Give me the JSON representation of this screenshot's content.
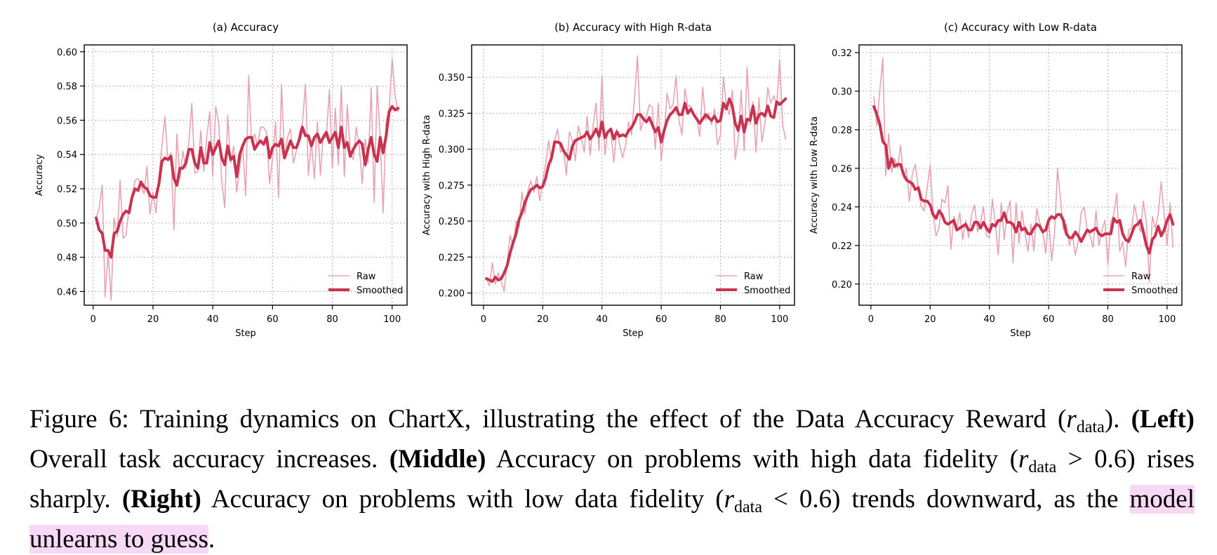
{
  "colors": {
    "raw": "#e8a3b3",
    "smoothed": "#c8334f",
    "grid": "#b0b0b0",
    "highlight": "#f7d8f5"
  },
  "chart_data": [
    {
      "type": "line",
      "title": "(a) Accuracy",
      "xlabel": "Step",
      "ylabel": "Accuracy",
      "xlim": [
        -3,
        105
      ],
      "ylim": [
        0.452,
        0.604
      ],
      "xticks": [
        0,
        20,
        40,
        60,
        80,
        100
      ],
      "yticks": [
        0.46,
        0.48,
        0.5,
        0.52,
        0.54,
        0.56,
        0.58,
        0.6
      ],
      "ytick_labels": [
        "0.46",
        "0.48",
        "0.50",
        "0.52",
        "0.54",
        "0.56",
        "0.58",
        "0.60"
      ],
      "grid": true,
      "legend_position": "lower-right",
      "series": [
        {
          "name": "Raw",
          "values": [
            0.503,
            0.509,
            0.522,
            0.457,
            0.483,
            0.455,
            0.503,
            0.492,
            0.525,
            0.491,
            0.493,
            0.509,
            0.516,
            0.525,
            0.526,
            0.522,
            0.517,
            0.533,
            0.505,
            0.518,
            0.506,
            0.527,
            0.545,
            0.562,
            0.536,
            0.541,
            0.496,
            0.552,
            0.526,
            0.542,
            0.532,
            0.547,
            0.57,
            0.529,
            0.53,
            0.554,
            0.53,
            0.55,
            0.565,
            0.527,
            0.568,
            0.558,
            0.525,
            0.509,
            0.563,
            0.535,
            0.545,
            0.518,
            0.532,
            0.546,
            0.516,
            0.586,
            0.547,
            0.552,
            0.545,
            0.556,
            0.556,
            0.553,
            0.523,
            0.538,
            0.559,
            0.515,
            0.581,
            0.538,
            0.55,
            0.555,
            0.535,
            0.542,
            0.553,
            0.558,
            0.581,
            0.528,
            0.547,
            0.526,
            0.559,
            0.528,
            0.552,
            0.55,
            0.578,
            0.532,
            0.567,
            0.534,
            0.58,
            0.527,
            0.569,
            0.541,
            0.537,
            0.556,
            0.545,
            0.523,
            0.549,
            0.535,
            0.579,
            0.512,
            0.58,
            0.55,
            0.506,
            0.56,
            0.566,
            0.596,
            0.574,
            0.565
          ]
        },
        {
          "name": "Smoothed",
          "values": [
            0.503,
            0.496,
            0.494,
            0.484,
            0.484,
            0.48,
            0.494,
            0.495,
            0.501,
            0.505,
            0.507,
            0.506,
            0.515,
            0.52,
            0.519,
            0.524,
            0.521,
            0.52,
            0.516,
            0.515,
            0.515,
            0.523,
            0.536,
            0.538,
            0.537,
            0.539,
            0.526,
            0.522,
            0.532,
            0.532,
            0.535,
            0.543,
            0.543,
            0.535,
            0.532,
            0.544,
            0.535,
            0.535,
            0.547,
            0.54,
            0.544,
            0.548,
            0.538,
            0.534,
            0.545,
            0.537,
            0.539,
            0.527,
            0.54,
            0.545,
            0.549,
            0.55,
            0.55,
            0.543,
            0.546,
            0.548,
            0.546,
            0.55,
            0.538,
            0.544,
            0.546,
            0.545,
            0.549,
            0.538,
            0.543,
            0.548,
            0.544,
            0.544,
            0.549,
            0.556,
            0.551,
            0.551,
            0.545,
            0.55,
            0.552,
            0.547,
            0.55,
            0.553,
            0.547,
            0.55,
            0.553,
            0.544,
            0.556,
            0.544,
            0.547,
            0.539,
            0.543,
            0.546,
            0.548,
            0.546,
            0.534,
            0.543,
            0.55,
            0.54,
            0.536,
            0.55,
            0.541,
            0.551,
            0.565,
            0.568,
            0.566,
            0.567
          ]
        }
      ]
    },
    {
      "type": "line",
      "title": "(b) Accuracy with High R-data",
      "xlabel": "Step",
      "ylabel": "Accuracy with High R-data",
      "xlim": [
        -4,
        105
      ],
      "ylim": [
        0.1915,
        0.3725
      ],
      "xticks": [
        0,
        20,
        40,
        60,
        80,
        100
      ],
      "yticks": [
        0.2,
        0.225,
        0.25,
        0.275,
        0.3,
        0.325,
        0.35
      ],
      "ytick_labels": [
        "0.200",
        "0.225",
        "0.250",
        "0.275",
        "0.300",
        "0.325",
        "0.350"
      ],
      "grid": true,
      "legend_position": "lower-right",
      "series": [
        {
          "name": "Raw",
          "values": [
            0.21,
            0.205,
            0.221,
            0.206,
            0.214,
            0.208,
            0.201,
            0.222,
            0.24,
            0.232,
            0.25,
            0.246,
            0.27,
            0.255,
            0.271,
            0.278,
            0.27,
            0.281,
            0.264,
            0.278,
            0.29,
            0.306,
            0.291,
            0.306,
            0.314,
            0.298,
            0.3,
            0.282,
            0.312,
            0.306,
            0.292,
            0.316,
            0.308,
            0.298,
            0.323,
            0.296,
            0.316,
            0.332,
            0.299,
            0.351,
            0.296,
            0.313,
            0.312,
            0.291,
            0.314,
            0.303,
            0.294,
            0.303,
            0.319,
            0.31,
            0.336,
            0.365,
            0.313,
            0.32,
            0.323,
            0.331,
            0.329,
            0.3,
            0.332,
            0.292,
            0.31,
            0.339,
            0.328,
            0.331,
            0.351,
            0.32,
            0.31,
            0.342,
            0.33,
            0.33,
            0.324,
            0.321,
            0.309,
            0.343,
            0.32,
            0.325,
            0.317,
            0.328,
            0.303,
            0.31,
            0.35,
            0.331,
            0.324,
            0.341,
            0.293,
            0.307,
            0.341,
            0.299,
            0.357,
            0.317,
            0.333,
            0.298,
            0.336,
            0.305,
            0.318,
            0.343,
            0.332,
            0.337,
            0.331,
            0.362,
            0.317,
            0.307
          ]
        },
        {
          "name": "Smoothed",
          "values": [
            0.21,
            0.209,
            0.208,
            0.211,
            0.209,
            0.21,
            0.214,
            0.219,
            0.228,
            0.235,
            0.241,
            0.251,
            0.256,
            0.263,
            0.268,
            0.272,
            0.273,
            0.275,
            0.273,
            0.274,
            0.28,
            0.289,
            0.294,
            0.305,
            0.305,
            0.304,
            0.299,
            0.296,
            0.293,
            0.302,
            0.306,
            0.307,
            0.308,
            0.309,
            0.312,
            0.307,
            0.31,
            0.314,
            0.309,
            0.319,
            0.308,
            0.312,
            0.314,
            0.307,
            0.312,
            0.309,
            0.31,
            0.309,
            0.313,
            0.315,
            0.319,
            0.324,
            0.324,
            0.321,
            0.319,
            0.322,
            0.317,
            0.312,
            0.315,
            0.305,
            0.313,
            0.32,
            0.324,
            0.326,
            0.329,
            0.324,
            0.324,
            0.332,
            0.325,
            0.328,
            0.324,
            0.321,
            0.318,
            0.321,
            0.324,
            0.322,
            0.32,
            0.323,
            0.319,
            0.32,
            0.332,
            0.328,
            0.335,
            0.33,
            0.318,
            0.313,
            0.323,
            0.312,
            0.321,
            0.32,
            0.33,
            0.318,
            0.324,
            0.325,
            0.323,
            0.33,
            0.323,
            0.322,
            0.333,
            0.331,
            0.333,
            0.335
          ]
        }
      ]
    },
    {
      "type": "line",
      "title": "(c) Accuracy with Low R-data",
      "xlabel": "Step",
      "ylabel": "Accuracy with Low R-data",
      "xlim": [
        -4,
        105
      ],
      "ylim": [
        0.189,
        0.324
      ],
      "xticks": [
        0,
        20,
        40,
        60,
        80,
        100
      ],
      "yticks": [
        0.2,
        0.22,
        0.24,
        0.26,
        0.28,
        0.3,
        0.32
      ],
      "ytick_labels": [
        "0.20",
        "0.22",
        "0.24",
        "0.26",
        "0.28",
        "0.30",
        "0.32"
      ],
      "grid": true,
      "legend_position": "lower-right",
      "series": [
        {
          "name": "Raw",
          "values": [
            0.297,
            0.282,
            0.3,
            0.317,
            0.256,
            0.278,
            0.258,
            0.265,
            0.26,
            0.272,
            0.255,
            0.26,
            0.243,
            0.257,
            0.262,
            0.25,
            0.24,
            0.238,
            0.25,
            0.262,
            0.236,
            0.225,
            0.229,
            0.244,
            0.242,
            0.251,
            0.218,
            0.235,
            0.229,
            0.237,
            0.223,
            0.233,
            0.224,
            0.236,
            0.241,
            0.227,
            0.232,
            0.24,
            0.225,
            0.224,
            0.244,
            0.232,
            0.215,
            0.242,
            0.223,
            0.237,
            0.243,
            0.211,
            0.242,
            0.221,
            0.238,
            0.227,
            0.217,
            0.231,
            0.217,
            0.239,
            0.232,
            0.227,
            0.216,
            0.235,
            0.212,
            0.226,
            0.26,
            0.244,
            0.228,
            0.231,
            0.22,
            0.226,
            0.215,
            0.222,
            0.237,
            0.24,
            0.228,
            0.225,
            0.219,
            0.238,
            0.22,
            0.228,
            0.233,
            0.21,
            0.232,
            0.236,
            0.247,
            0.217,
            0.222,
            0.209,
            0.228,
            0.229,
            0.241,
            0.233,
            0.227,
            0.243,
            0.232,
            0.201,
            0.235,
            0.229,
            0.236,
            0.253,
            0.236,
            0.22,
            0.242,
            0.219
          ]
        },
        {
          "name": "Smoothed",
          "values": [
            0.292,
            0.288,
            0.283,
            0.274,
            0.272,
            0.26,
            0.265,
            0.261,
            0.262,
            0.262,
            0.257,
            0.254,
            0.253,
            0.252,
            0.249,
            0.25,
            0.244,
            0.243,
            0.243,
            0.241,
            0.236,
            0.234,
            0.238,
            0.236,
            0.232,
            0.231,
            0.232,
            0.233,
            0.228,
            0.229,
            0.23,
            0.231,
            0.228,
            0.228,
            0.232,
            0.232,
            0.229,
            0.232,
            0.229,
            0.227,
            0.231,
            0.23,
            0.233,
            0.233,
            0.237,
            0.232,
            0.232,
            0.231,
            0.227,
            0.232,
            0.228,
            0.229,
            0.226,
            0.226,
            0.229,
            0.231,
            0.23,
            0.227,
            0.228,
            0.233,
            0.235,
            0.234,
            0.236,
            0.236,
            0.233,
            0.226,
            0.224,
            0.224,
            0.227,
            0.225,
            0.222,
            0.225,
            0.228,
            0.227,
            0.228,
            0.229,
            0.226,
            0.225,
            0.226,
            0.226,
            0.226,
            0.234,
            0.232,
            0.233,
            0.226,
            0.223,
            0.222,
            0.226,
            0.23,
            0.231,
            0.233,
            0.227,
            0.22,
            0.216,
            0.223,
            0.225,
            0.23,
            0.225,
            0.228,
            0.233,
            0.236,
            0.231
          ]
        }
      ]
    }
  ],
  "caption": {
    "figure_label": "Figure 6:",
    "line1_text": "Training dynamics on ChartX, illustrating the effect of the Data Accuracy Reward (",
    "r_symbol": "r",
    "data_sub": "data",
    "line1_end": ").",
    "left_label": "(Left)",
    "left_text": "Overall task accuracy increases.",
    "middle_label": "(Middle)",
    "middle_text": "Accuracy on problems with high data fidelity (",
    "middle_cond": " > 0.6) rises sharply.",
    "right_label": "(Right)",
    "right_text": "Accuracy on problems with low data fidelity (",
    "right_cond": " < 0.6) trends downward, as the",
    "highlight_text": "model unlearns to guess",
    "end_period": "."
  }
}
